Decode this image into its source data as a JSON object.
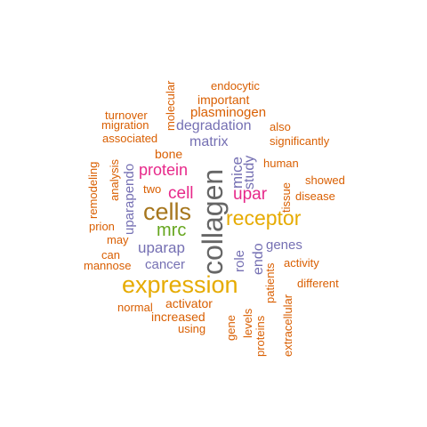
{
  "colors": {
    "orange": "#d95f02",
    "purple": "#7570b3",
    "magenta": "#e7298a",
    "green": "#66a61e",
    "gold": "#e6ab02",
    "brown": "#a6761d",
    "gray": "#666666"
  },
  "words": [
    {
      "text": "collagen",
      "color": "gray"
    },
    {
      "text": "expression",
      "color": "gold"
    },
    {
      "text": "cells",
      "color": "brown"
    },
    {
      "text": "receptor",
      "color": "gold"
    },
    {
      "text": "mrc",
      "color": "green"
    },
    {
      "text": "upar",
      "color": "magenta"
    },
    {
      "text": "cell",
      "color": "magenta"
    },
    {
      "text": "protein",
      "color": "magenta"
    },
    {
      "text": "uparap",
      "color": "purple"
    },
    {
      "text": "degradation",
      "color": "purple"
    },
    {
      "text": "matrix",
      "color": "purple"
    },
    {
      "text": "mice",
      "color": "purple"
    },
    {
      "text": "study",
      "color": "purple"
    },
    {
      "text": "cancer",
      "color": "purple"
    },
    {
      "text": "genes",
      "color": "purple"
    },
    {
      "text": "endo",
      "color": "purple"
    },
    {
      "text": "uparapendo",
      "color": "purple"
    },
    {
      "text": "role",
      "color": "purple"
    },
    {
      "text": "plasminogen",
      "color": "orange"
    },
    {
      "text": "endocytic",
      "color": "orange"
    },
    {
      "text": "important",
      "color": "orange"
    },
    {
      "text": "molecular",
      "color": "orange"
    },
    {
      "text": "turnover",
      "color": "orange"
    },
    {
      "text": "migration",
      "color": "orange"
    },
    {
      "text": "also",
      "color": "orange"
    },
    {
      "text": "associated",
      "color": "orange"
    },
    {
      "text": "significantly",
      "color": "orange"
    },
    {
      "text": "bone",
      "color": "orange"
    },
    {
      "text": "human",
      "color": "orange"
    },
    {
      "text": "showed",
      "color": "orange"
    },
    {
      "text": "remodeling",
      "color": "orange"
    },
    {
      "text": "analysis",
      "color": "orange"
    },
    {
      "text": "two",
      "color": "orange"
    },
    {
      "text": "tissue",
      "color": "orange"
    },
    {
      "text": "disease",
      "color": "orange"
    },
    {
      "text": "prion",
      "color": "orange"
    },
    {
      "text": "may",
      "color": "orange"
    },
    {
      "text": "can",
      "color": "orange"
    },
    {
      "text": "mannose",
      "color": "orange"
    },
    {
      "text": "activity",
      "color": "orange"
    },
    {
      "text": "patients",
      "color": "orange"
    },
    {
      "text": "different",
      "color": "orange"
    },
    {
      "text": "normal",
      "color": "orange"
    },
    {
      "text": "activator",
      "color": "orange"
    },
    {
      "text": "increased",
      "color": "orange"
    },
    {
      "text": "using",
      "color": "orange"
    },
    {
      "text": "gene",
      "color": "orange"
    },
    {
      "text": "levels",
      "color": "orange"
    },
    {
      "text": "proteins",
      "color": "orange"
    },
    {
      "text": "extracellular",
      "color": "orange"
    }
  ]
}
